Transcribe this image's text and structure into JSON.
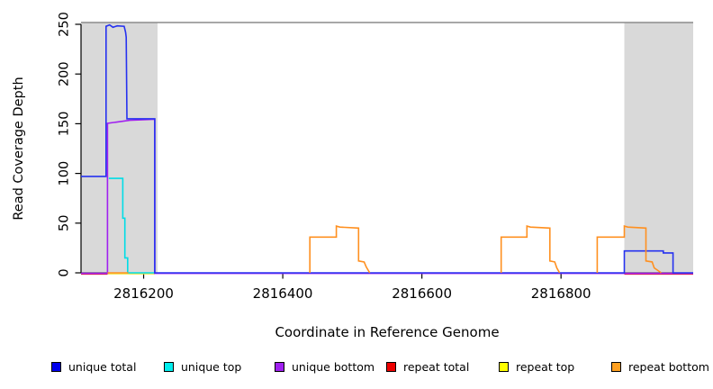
{
  "chart_data": {
    "type": "line",
    "title": "",
    "xlabel": "Coordinate in Reference Genome",
    "ylabel": "Read Coverage Depth",
    "xlim": [
      2816110,
      2816990
    ],
    "ylim": [
      0,
      250
    ],
    "x_ticks": [
      "2816200",
      "2816400",
      "2816600",
      "2816800"
    ],
    "x_tick_values": [
      2816200,
      2816400,
      2816600,
      2816800
    ],
    "y_ticks": [
      "0",
      "50",
      "100",
      "150",
      "200",
      "250"
    ],
    "y_tick_values": [
      0,
      50,
      100,
      150,
      200,
      250
    ],
    "grid": false,
    "legend_position": "bottom",
    "top_border_color": "#8c8c8c",
    "axis_color": "#000000",
    "shaded_regions": [
      {
        "x1": 2816110,
        "x2": 2816220,
        "color": "#d9d9d9"
      },
      {
        "x1": 2816891,
        "x2": 2816990,
        "color": "#d9d9d9"
      }
    ],
    "series": [
      {
        "name": "unique total",
        "color": "#2632f0",
        "segments": [
          [
            [
              2816110,
              97
            ],
            [
              2816146,
              97
            ],
            [
              2816146,
              248
            ],
            [
              2816151,
              249.5
            ],
            [
              2816156,
              247
            ],
            [
              2816162,
              248.5
            ],
            [
              2816172,
              248
            ],
            [
              2816174,
              242
            ],
            [
              2816175,
              237
            ],
            [
              2816176,
              155
            ],
            [
              2816216,
              155
            ],
            [
              2816216,
              0
            ],
            [
              2816891,
              0
            ],
            [
              2816891,
              22
            ],
            [
              2816947,
              22
            ],
            [
              2816947,
              20
            ],
            [
              2816961,
              20
            ],
            [
              2816961,
              0
            ],
            [
              2816990,
              0
            ]
          ]
        ]
      },
      {
        "name": "unique top",
        "color": "#00dde6",
        "segments": [
          [
            [
              2816150,
              95
            ],
            [
              2816170,
              95
            ],
            [
              2816170,
              55
            ],
            [
              2816173,
              55
            ],
            [
              2816173,
              15
            ],
            [
              2816177,
              15
            ],
            [
              2816177,
              0
            ],
            [
              2816216,
              0
            ]
          ]
        ]
      },
      {
        "name": "unique bottom",
        "color": "#a020f0",
        "segments": [
          [
            [
              2816110,
              0
            ],
            [
              2816148,
              0
            ],
            [
              2816148,
              151
            ],
            [
              2816180,
              154
            ],
            [
              2816216,
              155
            ],
            [
              2816216,
              0
            ],
            [
              2816990,
              0
            ]
          ]
        ]
      },
      {
        "name": "repeat total",
        "color": "#e82530",
        "segments": [
          [
            [
              2816110,
              0
            ],
            [
              2816148,
              0
            ]
          ],
          [
            [
              2816891,
              0
            ],
            [
              2816990,
              0
            ]
          ]
        ]
      },
      {
        "name": "repeat top",
        "color": "#f4e438",
        "segments": [
          [
            [
              2816148,
              0
            ],
            [
              2816216,
              0
            ]
          ]
        ]
      },
      {
        "name": "repeat bottom",
        "color": "#ff9020",
        "segments": [
          [
            [
              2816148,
              0
            ],
            [
              2816178,
              0
            ]
          ],
          [
            [
              2816439,
              0
            ],
            [
              2816439,
              36
            ],
            [
              2816477,
              36
            ],
            [
              2816477,
              47
            ],
            [
              2816482,
              46
            ],
            [
              2816509,
              45
            ],
            [
              2816509,
              12
            ],
            [
              2816517,
              11
            ],
            [
              2816520,
              6
            ],
            [
              2816525,
              0
            ]
          ],
          [
            [
              2816714,
              0
            ],
            [
              2816714,
              36
            ],
            [
              2816751,
              36
            ],
            [
              2816751,
              47
            ],
            [
              2816756,
              46
            ],
            [
              2816784,
              45
            ],
            [
              2816784,
              12
            ],
            [
              2816791,
              11
            ],
            [
              2816794,
              5
            ],
            [
              2816798,
              0
            ]
          ],
          [
            [
              2816852,
              0
            ],
            [
              2816852,
              36
            ],
            [
              2816891,
              36
            ],
            [
              2816891,
              47
            ],
            [
              2816896,
              46
            ],
            [
              2816922,
              45
            ],
            [
              2816922,
              12
            ],
            [
              2816931,
              11
            ],
            [
              2816934,
              5
            ],
            [
              2816944,
              0
            ]
          ]
        ]
      }
    ]
  },
  "legend": {
    "items": [
      {
        "label": "unique total",
        "color": "#0000ee"
      },
      {
        "label": "unique top",
        "color": "#00eeee"
      },
      {
        "label": "unique bottom",
        "color": "#a020f0"
      },
      {
        "label": "repeat total",
        "color": "#ee0000"
      },
      {
        "label": "repeat top",
        "color": "#ffff00"
      },
      {
        "label": "repeat bottom",
        "color": "#ffa020"
      }
    ]
  }
}
